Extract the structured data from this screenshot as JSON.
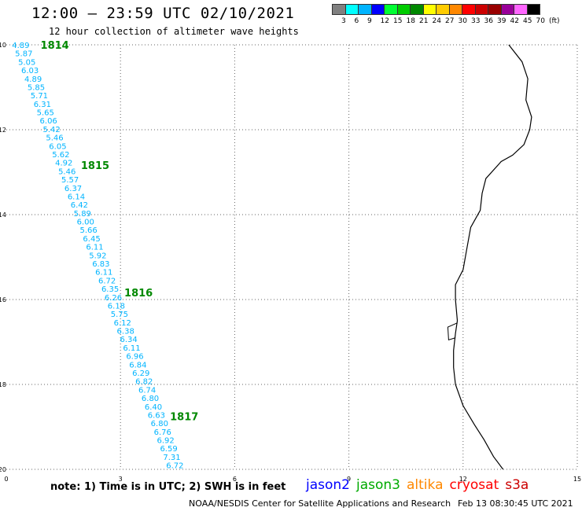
{
  "header": {
    "title": "12:00 – 23:59 UTC 02/10/2021",
    "subtitle": "12 hour collection of altimeter wave heights"
  },
  "legend": {
    "unit": "(ft)",
    "labels": [
      "3",
      "6",
      "9",
      "12",
      "15",
      "18",
      "21",
      "24",
      "27",
      "30",
      "33",
      "36",
      "39",
      "42",
      "45",
      "70"
    ],
    "colors": [
      "#808080",
      "#00ffff",
      "#00b4ff",
      "#0000ff",
      "#00ff33",
      "#00cc00",
      "#008800",
      "#ffff00",
      "#ffcc00",
      "#ff8800",
      "#ff0000",
      "#cc0000",
      "#990000",
      "#990099",
      "#ff66ff",
      "#000000"
    ]
  },
  "map": {
    "lon_range": [
      0,
      15
    ],
    "lat_range": [
      -20,
      -10
    ],
    "x_ticks": [
      "0",
      "3",
      "6",
      "9",
      "12",
      "15"
    ],
    "y_ticks": [
      "-10",
      "-12",
      "-14",
      "-16",
      "-18",
      "-20"
    ],
    "track_color": "#00b4ff",
    "hour_label_color": "#008800",
    "coast_color": "#000000",
    "track_values": [
      "4.89",
      "5.87",
      "5.05",
      "6.03",
      "4.89",
      "5.85",
      "5.71",
      "6.31",
      "5.65",
      "6.06",
      "5.42",
      "5.46",
      "6.05",
      "5.62",
      "4.92",
      "5.46",
      "5.57",
      "6.37",
      "6.14",
      "6.42",
      "5.89",
      "6.00",
      "5.66",
      "6.45",
      "6.11",
      "5.92",
      "6.83",
      "6.11",
      "6.72",
      "6.35",
      "6.26",
      "6.18",
      "5.75",
      "6.12",
      "6.38",
      "6.34",
      "6.11",
      "6.96",
      "6.84",
      "6.29",
      "6.82",
      "6.74",
      "6.80",
      "6.40",
      "6.63",
      "6.80",
      "6.76",
      "6.92",
      "6.59",
      "7.31",
      "6.72"
    ],
    "hour_labels": [
      {
        "text": "1814",
        "lon": 0.9,
        "lat": -10.0
      },
      {
        "text": "1815",
        "lon": 1.96,
        "lat": -12.83
      },
      {
        "text": "1816",
        "lon": 3.1,
        "lat": -15.83
      },
      {
        "text": "1817",
        "lon": 4.3,
        "lat": -18.75
      }
    ],
    "coastline": [
      [
        13.2,
        -10.0
      ],
      [
        13.55,
        -10.4
      ],
      [
        13.7,
        -10.8
      ],
      [
        13.65,
        -11.3
      ],
      [
        13.8,
        -11.7
      ],
      [
        13.75,
        -12.0
      ],
      [
        13.6,
        -12.35
      ],
      [
        13.3,
        -12.6
      ],
      [
        13.0,
        -12.75
      ],
      [
        12.6,
        -13.15
      ],
      [
        12.5,
        -13.5
      ],
      [
        12.45,
        -13.9
      ],
      [
        12.2,
        -14.3
      ],
      [
        12.1,
        -14.8
      ],
      [
        12.0,
        -15.3
      ],
      [
        11.8,
        -15.65
      ],
      [
        11.8,
        -16.0
      ],
      [
        11.85,
        -16.5
      ],
      [
        11.8,
        -16.8
      ],
      [
        11.75,
        -17.2
      ],
      [
        11.75,
        -17.6
      ],
      [
        11.8,
        -18.0
      ],
      [
        12.0,
        -18.5
      ],
      [
        12.3,
        -18.95
      ],
      [
        12.55,
        -19.3
      ],
      [
        12.8,
        -19.7
      ],
      [
        13.05,
        -20.0
      ]
    ]
  },
  "footer": {
    "note": "note: 1) Time is in UTC; 2) SWH is in feet",
    "satellites": [
      {
        "name": "jason2",
        "color": "#0000ff"
      },
      {
        "name": "jason3",
        "color": "#00aa00"
      },
      {
        "name": "altika",
        "color": "#ff8800"
      },
      {
        "name": "cryosat",
        "color": "#ff0000"
      },
      {
        "name": "s3a",
        "color": "#cc0000"
      }
    ],
    "credit": "NOAA/NESDIS Center for Satellite Applications and Research",
    "timestamp": "Feb 13 08:30:45 UTC 2021"
  }
}
